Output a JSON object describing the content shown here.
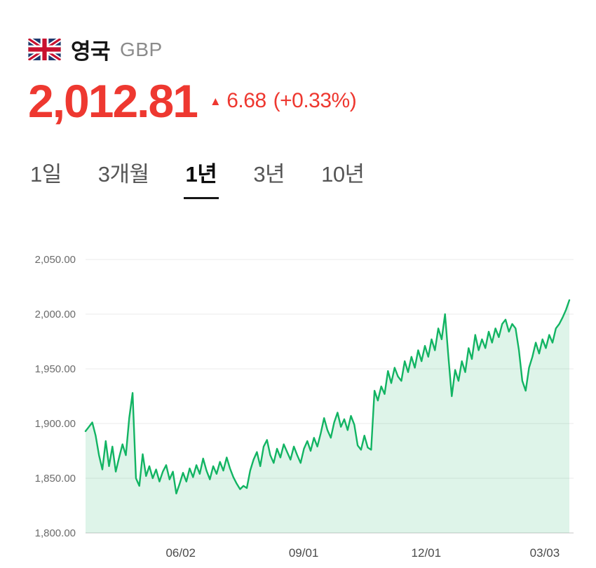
{
  "header": {
    "country": "영국",
    "currency_code": "GBP"
  },
  "quote": {
    "price": "2,012.81",
    "change_arrow": "▲",
    "change_value": "6.68",
    "change_percent": "(+0.33%)"
  },
  "colors": {
    "price_red": "#ee3830",
    "chart_green": "#12b463"
  },
  "tabs": [
    {
      "name": "1day",
      "label": "1일",
      "active": false
    },
    {
      "name": "3month",
      "label": "3개월",
      "active": false
    },
    {
      "name": "1year",
      "label": "1년",
      "active": true
    },
    {
      "name": "3year",
      "label": "3년",
      "active": false
    },
    {
      "name": "10year",
      "label": "10년",
      "active": false
    }
  ],
  "chart_data": {
    "type": "area",
    "title": "영국 GBP 1년 환율 차트",
    "xlabel": "",
    "ylabel": "",
    "ylim": [
      1800,
      2050
    ],
    "yticks": [
      "2,050.00",
      "2,000.00",
      "1,950.00",
      "1,900.00",
      "1,850.00",
      "1,800.00"
    ],
    "xticks": [
      "06/02",
      "09/01",
      "12/01",
      "03/03"
    ],
    "xtick_positions": [
      0.195,
      0.447,
      0.698,
      0.941
    ],
    "line_color": "#12b463",
    "fill_color": "rgba(18,180,99,0.14)",
    "grid": true,
    "legend": "none",
    "values": [
      1893,
      1897,
      1901,
      1889,
      1871,
      1858,
      1884,
      1861,
      1879,
      1856,
      1869,
      1881,
      1871,
      1905,
      1928,
      1850,
      1843,
      1872,
      1852,
      1861,
      1850,
      1858,
      1847,
      1856,
      1862,
      1849,
      1856,
      1836,
      1845,
      1855,
      1847,
      1859,
      1851,
      1862,
      1854,
      1868,
      1857,
      1849,
      1861,
      1854,
      1865,
      1857,
      1869,
      1859,
      1851,
      1845,
      1840,
      1843,
      1841,
      1857,
      1867,
      1874,
      1861,
      1879,
      1885,
      1871,
      1864,
      1877,
      1869,
      1881,
      1874,
      1867,
      1879,
      1871,
      1864,
      1877,
      1884,
      1875,
      1887,
      1879,
      1891,
      1905,
      1894,
      1887,
      1901,
      1910,
      1897,
      1904,
      1894,
      1907,
      1899,
      1880,
      1876,
      1889,
      1878,
      1876,
      1930,
      1921,
      1934,
      1927,
      1948,
      1937,
      1951,
      1943,
      1939,
      1957,
      1947,
      1961,
      1951,
      1967,
      1957,
      1971,
      1961,
      1977,
      1967,
      1987,
      1977,
      2000,
      1961,
      1925,
      1949,
      1939,
      1957,
      1947,
      1969,
      1959,
      1981,
      1967,
      1977,
      1969,
      1984,
      1974,
      1987,
      1979,
      1991,
      1995,
      1984,
      1991,
      1987,
      1967,
      1939,
      1930,
      1951,
      1961,
      1974,
      1964,
      1977,
      1969,
      1981,
      1974,
      1987,
      1991,
      1997,
      2004,
      2012.81
    ]
  }
}
